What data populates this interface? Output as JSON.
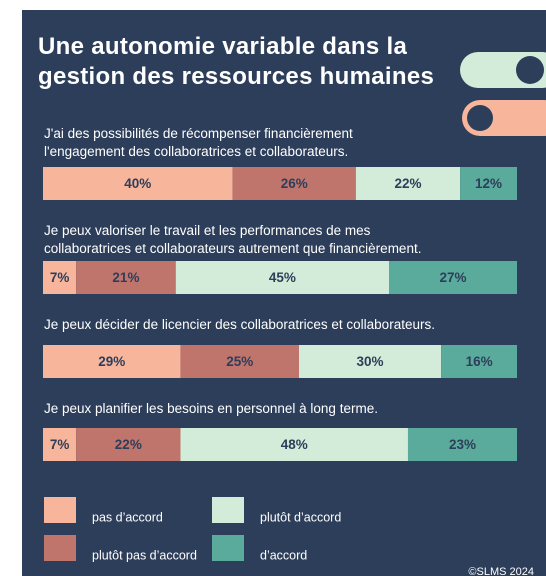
{
  "chart_data": {
    "type": "bar",
    "orientation": "horizontal",
    "stacked": true,
    "title": "Une autonomie variable dans la\ngestion des ressources humaines",
    "categories": [
      "J'ai des possibilités de récompenser financièrement\nl'engagement des collaboratrices et collaborateurs.",
      "Je peux valoriser le travail et les performances de mes\ncollaboratrices et collaborateurs autrement que financièrement.",
      "Je peux décider de licencier des collaboratrices et collaborateurs.",
      "Je peux planifier les besoins en personnel à long terme."
    ],
    "xlim": [
      0,
      100
    ],
    "series": [
      {
        "name": "pas d’accord",
        "color": "#f7b59b",
        "values": [
          40,
          7,
          29,
          7
        ],
        "value_labels": [
          "40%",
          "7%",
          "29%",
          "7%"
        ]
      },
      {
        "name": "plutôt pas d’accord",
        "color": "#c0756c",
        "values": [
          26,
          21,
          25,
          22
        ],
        "value_labels": [
          "26%",
          "21%",
          "25%",
          "22%"
        ]
      },
      {
        "name": "plutôt d’accord",
        "color": "#d3ebd9",
        "values": [
          22,
          45,
          30,
          48
        ],
        "value_labels": [
          "22%",
          "45%",
          "30%",
          "48%"
        ]
      },
      {
        "name": "d’accord",
        "color": "#5aab9b",
        "values": [
          12,
          27,
          16,
          23
        ],
        "value_labels": [
          "12%",
          "27%",
          "16%",
          "23%"
        ]
      }
    ],
    "copyright": "©SLMS 2024"
  }
}
